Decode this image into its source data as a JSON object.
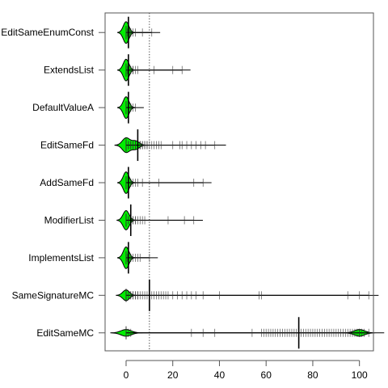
{
  "chart_data": {
    "type": "beanplot",
    "orientation": "horizontal",
    "title": "",
    "xlabel": "",
    "ylabel": "",
    "xlim": [
      -9,
      106
    ],
    "xticks": [
      0,
      20,
      40,
      60,
      80,
      100
    ],
    "xtick_labels": [
      "0",
      "20",
      "40",
      "60",
      "80",
      "100"
    ],
    "reference_line_x": 10,
    "reference_line_style": "dotted",
    "bean_fill": "#00ee00",
    "bean_stroke": "#000000",
    "categories": [
      "EditSameEnumConst",
      "ExtendsList",
      "DefaultValueA",
      "EditSameFd",
      "AddSameFd",
      "ModifierList",
      "ImplementsList",
      "SameSignatureMC",
      "EditSameMC"
    ],
    "display_labels": [
      "EditSameEnumConst",
      "ExtendsList",
      "DefaultValueA",
      "EditSameFd",
      "AddSameFd",
      "ModifierList",
      "ImplementsList",
      "SameSignatureMC",
      "EditSameMC"
    ],
    "series": [
      {
        "name": "EditSameEnumConst",
        "max": 11,
        "mean": 1,
        "density_peaks": [
          [
            0,
            0.9
          ]
        ],
        "spread": 1.2,
        "points": [
          0,
          0,
          0,
          0,
          0,
          0.5,
          1,
          1,
          1,
          1.5,
          2,
          2,
          3,
          4,
          7,
          11
        ]
      },
      {
        "name": "ExtendsList",
        "max": 24,
        "mean": 1,
        "density_peaks": [
          [
            0,
            0.9
          ]
        ],
        "spread": 1.2,
        "points": [
          0,
          0,
          0,
          0,
          0,
          0.5,
          1,
          1,
          1,
          2,
          2,
          3,
          3,
          4,
          5,
          12,
          20,
          24
        ]
      },
      {
        "name": "DefaultValueA",
        "max": 4,
        "mean": 1,
        "density_peaks": [
          [
            0,
            0.9
          ]
        ],
        "spread": 1.2,
        "points": [
          0,
          0,
          0,
          0,
          0,
          1,
          1,
          1,
          2,
          2,
          3,
          4
        ]
      },
      {
        "name": "EditSameFd",
        "max": 38,
        "mean": 5,
        "density_peaks": [
          [
            0,
            0.6
          ],
          [
            4,
            0.35
          ]
        ],
        "spread": 1.6,
        "points": [
          0,
          0,
          0,
          0,
          0,
          1,
          1,
          1,
          2,
          2,
          2,
          3,
          3,
          3,
          4,
          4,
          4,
          4,
          5,
          5,
          5,
          5,
          6,
          6,
          6,
          7,
          7,
          8,
          8,
          9,
          9,
          10,
          11,
          12,
          13,
          14,
          15,
          20,
          23,
          24,
          26,
          28,
          30,
          32,
          34,
          38
        ]
      },
      {
        "name": "AddSameFd",
        "max": 33,
        "mean": 1,
        "density_peaks": [
          [
            0,
            0.9
          ]
        ],
        "spread": 1.2,
        "points": [
          0,
          0,
          0,
          0,
          0,
          1,
          1,
          1,
          2,
          2,
          3,
          4,
          5,
          7,
          14,
          29,
          33
        ]
      },
      {
        "name": "ModifierList",
        "max": 29,
        "mean": 2,
        "density_peaks": [
          [
            0,
            0.8
          ]
        ],
        "spread": 1.3,
        "points": [
          0,
          0,
          0,
          0,
          0,
          1,
          1,
          1,
          2,
          2,
          2,
          3,
          3,
          4,
          4,
          5,
          6,
          7,
          8,
          18,
          25,
          29
        ]
      },
      {
        "name": "ImplementsList",
        "max": 10,
        "mean": 1,
        "density_peaks": [
          [
            0,
            0.9
          ]
        ],
        "spread": 1.2,
        "points": [
          0,
          0,
          0,
          0,
          0,
          0.5,
          1,
          1,
          1,
          2,
          2,
          3,
          4,
          5,
          6,
          10
        ]
      },
      {
        "name": "SameSignatureMC",
        "max": 104,
        "mean": 10,
        "density_peaks": [
          [
            0,
            0.45
          ]
        ],
        "spread": 1.4,
        "points": [
          0,
          0,
          0,
          0,
          0,
          1,
          1,
          2,
          2,
          3,
          3,
          4,
          4,
          5,
          5,
          6,
          7,
          8,
          9,
          10,
          11,
          12,
          13,
          14,
          15,
          16,
          17,
          18,
          20,
          22,
          24,
          26,
          28,
          30,
          33,
          40,
          57,
          58,
          95,
          100,
          104
        ]
      },
      {
        "name": "EditSameMC",
        "max": 104,
        "mean": 74,
        "density_peaks": [
          [
            0,
            0.28
          ],
          [
            100,
            0.28
          ]
        ],
        "spread": 2.2,
        "points": [
          0,
          0,
          0,
          1,
          2,
          28,
          33,
          38,
          54,
          58,
          59,
          60,
          61,
          62,
          63,
          64,
          65,
          66,
          67,
          68,
          69,
          70,
          71,
          72,
          73,
          74,
          74,
          75,
          76,
          77,
          78,
          79,
          80,
          81,
          82,
          83,
          84,
          85,
          86,
          87,
          88,
          89,
          90,
          91,
          92,
          93,
          94,
          95,
          96,
          97,
          98,
          99,
          100,
          100,
          100,
          101,
          102,
          104
        ]
      }
    ],
    "grid": false,
    "legend": "none"
  }
}
